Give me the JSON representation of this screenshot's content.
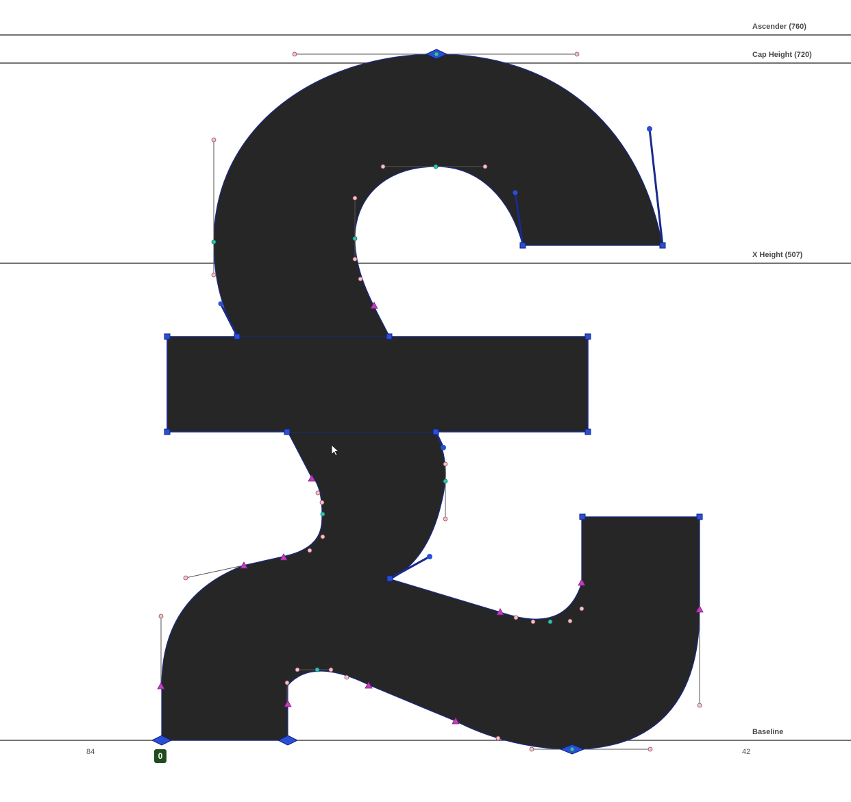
{
  "editor": {
    "glyph_char": "£",
    "metrics": {
      "ascender": "Ascender (760)",
      "cap_height": "Cap Height (720)",
      "x_height": "X Height (507)",
      "baseline": "Baseline"
    },
    "sidebearings": {
      "left": "84",
      "right": "42"
    },
    "origin_marker": "0"
  },
  "colors": {
    "glyph_fill": "#262626",
    "outline": "#1a2a8a",
    "corner_node": "#2a4fd6",
    "smooth_node": "#2ec4b0",
    "curve_node": "#c23ec2",
    "offcurve_point": "#f4c2cc",
    "metric_line": "#222222"
  },
  "icons": {
    "cursor": "arrow-cursor-icon"
  }
}
